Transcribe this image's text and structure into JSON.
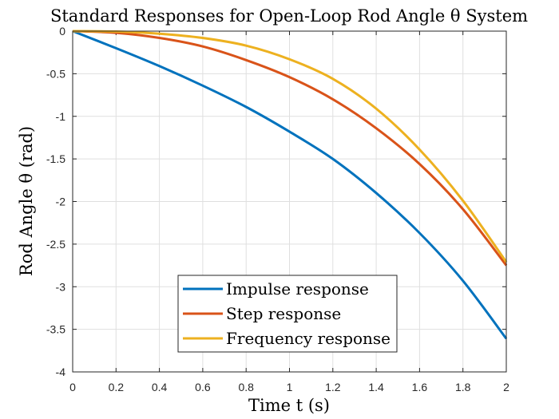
{
  "chart_data": {
    "type": "line",
    "title": "Standard Responses for Open-Loop Rod Angle θ System",
    "xlabel": "Time t (s)",
    "ylabel": "Rod Angle θ (rad)",
    "xlim": [
      0,
      2
    ],
    "ylim": [
      -4,
      0
    ],
    "xticks": [
      0,
      0.2,
      0.4,
      0.6,
      0.8,
      1,
      1.2,
      1.4,
      1.6,
      1.8,
      2
    ],
    "xtick_labels": [
      "0",
      "0.2",
      "0.4",
      "0.6",
      "0.8",
      "1",
      "1.2",
      "1.4",
      "1.6",
      "1.8",
      "2"
    ],
    "yticks": [
      0,
      -0.5,
      -1,
      -1.5,
      -2,
      -2.5,
      -3,
      -3.5,
      -4
    ],
    "ytick_labels": [
      "0",
      "-0.5",
      "-1",
      "-1.5",
      "-2",
      "-2.5",
      "-3",
      "-3.5",
      "-4"
    ],
    "grid": true,
    "legend_position": "bottom-center",
    "x": [
      0,
      0.2,
      0.4,
      0.6,
      0.8,
      1.0,
      1.2,
      1.4,
      1.6,
      1.8,
      2.0
    ],
    "series": [
      {
        "name": "Impulse response",
        "color": "#0072BD",
        "values": [
          0,
          -0.2,
          -0.41,
          -0.64,
          -0.89,
          -1.18,
          -1.5,
          -1.9,
          -2.37,
          -2.93,
          -3.61
        ]
      },
      {
        "name": "Step response",
        "color": "#D95319",
        "values": [
          0,
          -0.02,
          -0.08,
          -0.18,
          -0.34,
          -0.54,
          -0.8,
          -1.14,
          -1.56,
          -2.09,
          -2.75
        ]
      },
      {
        "name": "Frequency response",
        "color": "#EDB120",
        "values": [
          0,
          -0.005,
          -0.03,
          -0.08,
          -0.17,
          -0.33,
          -0.56,
          -0.91,
          -1.39,
          -1.99,
          -2.71
        ]
      }
    ]
  }
}
